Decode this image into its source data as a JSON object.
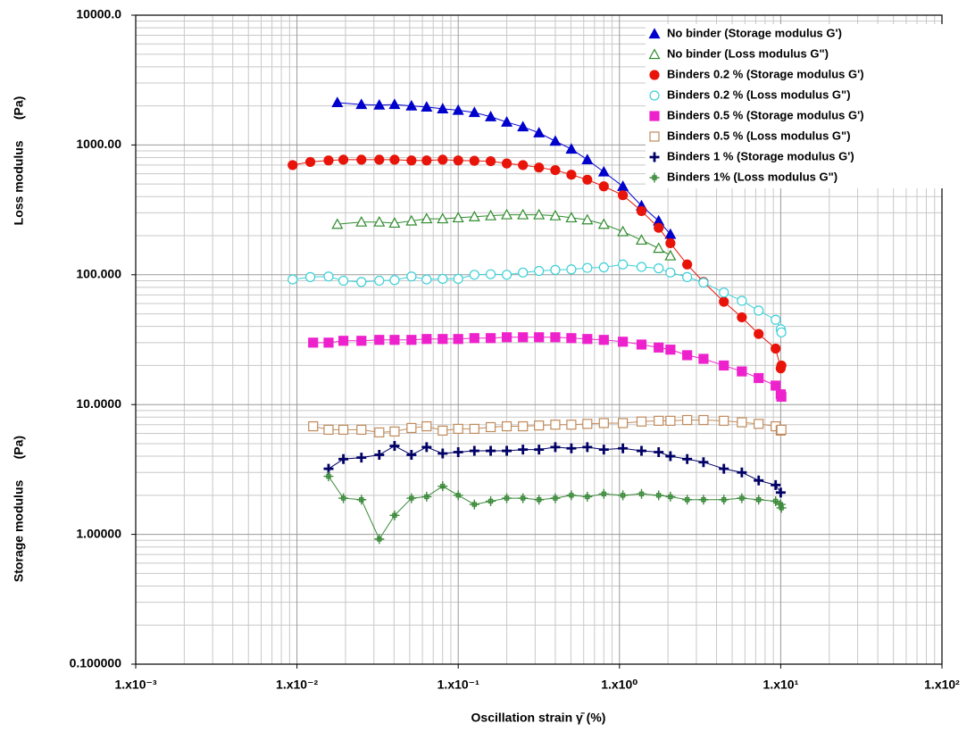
{
  "chart_data": {
    "type": "line",
    "xlabel": "Oscillation strain γ̄ (%)",
    "ylabel_upper": "Loss modulus      (Pa)",
    "ylabel_lower": "Storage modulus      (Pa)",
    "xlog": true,
    "ylog": true,
    "grid": true,
    "legend": "upper right",
    "xlim": [
      0.001,
      100
    ],
    "ylim": [
      0.1,
      10000
    ],
    "xticks": [
      {
        "value": 0.001,
        "label": "1.x10⁻³"
      },
      {
        "value": 0.01,
        "label": "1.x10⁻²"
      },
      {
        "value": 0.1,
        "label": "1.x10⁻¹"
      },
      {
        "value": 1,
        "label": "1.x10⁰"
      },
      {
        "value": 10,
        "label": "1.x10¹"
      },
      {
        "value": 100,
        "label": "1.x10²"
      }
    ],
    "yticks": [
      {
        "value": 0.1,
        "label": "0.100000"
      },
      {
        "value": 1,
        "label": "1.00000"
      },
      {
        "value": 10,
        "label": "10.0000"
      },
      {
        "value": 100,
        "label": "100.000"
      },
      {
        "value": 1000,
        "label": "1000.00"
      },
      {
        "value": 10000,
        "label": "10000.0"
      }
    ],
    "series": [
      {
        "name": "No binder (Storage modulus G')",
        "color": "#0000cc",
        "marker": "triangle",
        "x": [
          0.0178,
          0.0251,
          0.0324,
          0.0403,
          0.0513,
          0.0637,
          0.0801,
          0.1,
          0.126,
          0.159,
          0.2,
          0.252,
          0.317,
          0.4,
          0.503,
          0.632,
          0.8,
          1.05,
          1.37,
          1.75,
          2.07
        ],
        "values": [
          2120,
          2050,
          2030,
          2050,
          2000,
          1960,
          1900,
          1850,
          1780,
          1650,
          1500,
          1380,
          1240,
          1070,
          930,
          770,
          620,
          480,
          340,
          260,
          205
        ]
      },
      {
        "name": "No binder  (Loss modulus G\")",
        "color": "#2e8b2e",
        "marker": "triangle-open",
        "x": [
          0.0178,
          0.0251,
          0.0324,
          0.0403,
          0.0513,
          0.0637,
          0.0801,
          0.1,
          0.126,
          0.159,
          0.2,
          0.252,
          0.317,
          0.4,
          0.503,
          0.632,
          0.8,
          1.05,
          1.37,
          1.75,
          2.07
        ],
        "values": [
          245,
          255,
          255,
          250,
          260,
          270,
          270,
          275,
          280,
          285,
          290,
          290,
          290,
          285,
          275,
          265,
          245,
          215,
          185,
          160,
          140
        ]
      },
      {
        "name": "Binders 0.2 %  (Storage modulus G')",
        "color": "#e8140a",
        "marker": "circle",
        "x": [
          0.0094,
          0.0121,
          0.0157,
          0.0194,
          0.0251,
          0.0324,
          0.0403,
          0.0513,
          0.0637,
          0.0801,
          0.1,
          0.126,
          0.159,
          0.2,
          0.252,
          0.317,
          0.4,
          0.503,
          0.632,
          0.8,
          1.05,
          1.37,
          1.75,
          2.07,
          2.63,
          3.32,
          4.44,
          5.74,
          7.3,
          9.3,
          10,
          10.1
        ],
        "values": [
          700,
          740,
          760,
          770,
          770,
          770,
          770,
          760,
          760,
          770,
          760,
          755,
          750,
          720,
          700,
          670,
          640,
          590,
          540,
          480,
          410,
          310,
          230,
          175,
          120,
          88,
          62,
          47,
          35,
          27,
          19,
          20
        ]
      },
      {
        "name": "Binders 0.2 %  (Loss modulus G\")",
        "color": "#3cd0d8",
        "marker": "circle-open",
        "x": [
          0.0094,
          0.0121,
          0.0157,
          0.0194,
          0.0251,
          0.0324,
          0.0403,
          0.0513,
          0.0637,
          0.0801,
          0.1,
          0.126,
          0.159,
          0.2,
          0.252,
          0.317,
          0.4,
          0.503,
          0.632,
          0.8,
          1.05,
          1.37,
          1.75,
          2.07,
          2.63,
          3.32,
          4.44,
          5.74,
          7.3,
          9.3,
          10,
          10.1
        ],
        "values": [
          92,
          96,
          97,
          90,
          88,
          90,
          91,
          97,
          92,
          93,
          93,
          100,
          101,
          100,
          104,
          107,
          109,
          110,
          113,
          114,
          120,
          115,
          112,
          104,
          96,
          87,
          73,
          63,
          53,
          45,
          38,
          36
        ]
      },
      {
        "name": "Binders 0.5 %  (Storage modulus G')",
        "color": "#ee22cc",
        "marker": "square",
        "x": [
          0.0126,
          0.0157,
          0.0194,
          0.0251,
          0.0324,
          0.0403,
          0.0513,
          0.0637,
          0.0801,
          0.1,
          0.126,
          0.159,
          0.2,
          0.252,
          0.317,
          0.4,
          0.503,
          0.632,
          0.8,
          1.05,
          1.37,
          1.75,
          2.07,
          2.63,
          3.32,
          4.44,
          5.74,
          7.3,
          9.3,
          10,
          10.1
        ],
        "values": [
          30,
          30,
          31,
          31,
          31.5,
          31.5,
          31.5,
          32,
          32,
          32,
          32.5,
          32.5,
          33,
          33,
          33,
          33,
          32.5,
          32,
          31.5,
          30.5,
          29,
          27.5,
          26.5,
          24,
          22.5,
          20,
          18,
          16,
          14,
          12,
          11.5
        ]
      },
      {
        "name": "Binders 0.5 %  (Loss modulus G\")",
        "color": "#c08a5a",
        "marker": "square-open",
        "x": [
          0.0126,
          0.0157,
          0.0194,
          0.0251,
          0.0324,
          0.0403,
          0.0513,
          0.0637,
          0.0801,
          0.1,
          0.126,
          0.159,
          0.2,
          0.252,
          0.317,
          0.4,
          0.503,
          0.632,
          0.8,
          1.05,
          1.37,
          1.75,
          2.07,
          2.63,
          3.32,
          4.44,
          5.74,
          7.3,
          9.3,
          10,
          10.1
        ],
        "values": [
          6.8,
          6.4,
          6.4,
          6.4,
          6.1,
          6.2,
          6.6,
          6.8,
          6.3,
          6.5,
          6.5,
          6.7,
          6.8,
          6.8,
          6.9,
          7.0,
          7.0,
          7.1,
          7.2,
          7.2,
          7.4,
          7.5,
          7.5,
          7.6,
          7.6,
          7.5,
          7.3,
          7.1,
          6.8,
          6.3,
          6.4
        ]
      },
      {
        "name": "Binders 1 %  (Storage modulus G')",
        "color": "#000066",
        "marker": "plus",
        "x": [
          0.0157,
          0.0194,
          0.0251,
          0.0324,
          0.0403,
          0.0513,
          0.0637,
          0.0801,
          0.1,
          0.126,
          0.159,
          0.2,
          0.252,
          0.317,
          0.4,
          0.503,
          0.632,
          0.8,
          1.05,
          1.37,
          1.75,
          2.07,
          2.63,
          3.32,
          4.44,
          5.74,
          7.3,
          9.3,
          10
        ],
        "values": [
          3.2,
          3.8,
          3.9,
          4.1,
          4.8,
          4.1,
          4.7,
          4.2,
          4.3,
          4.4,
          4.4,
          4.4,
          4.5,
          4.5,
          4.7,
          4.6,
          4.7,
          4.5,
          4.6,
          4.4,
          4.3,
          4.0,
          3.8,
          3.6,
          3.2,
          3.0,
          2.6,
          2.4,
          2.1
        ]
      },
      {
        "name": "Binders 1%  (Loss modulus G\")",
        "color": "#3a8a3a",
        "marker": "plus-open",
        "x": [
          0.0157,
          0.0194,
          0.0251,
          0.0324,
          0.0403,
          0.0513,
          0.0637,
          0.0801,
          0.1,
          0.126,
          0.159,
          0.2,
          0.252,
          0.317,
          0.4,
          0.503,
          0.632,
          0.8,
          1.05,
          1.37,
          1.75,
          2.07,
          2.63,
          3.32,
          4.44,
          5.74,
          7.3,
          9.3,
          10,
          10.1
        ],
        "values": [
          2.8,
          1.9,
          1.85,
          0.92,
          1.4,
          1.9,
          1.95,
          2.35,
          2.0,
          1.7,
          1.8,
          1.9,
          1.9,
          1.85,
          1.9,
          2.0,
          1.95,
          2.05,
          2.0,
          2.05,
          2.0,
          1.95,
          1.85,
          1.85,
          1.85,
          1.9,
          1.85,
          1.8,
          1.7,
          1.6
        ]
      }
    ]
  }
}
